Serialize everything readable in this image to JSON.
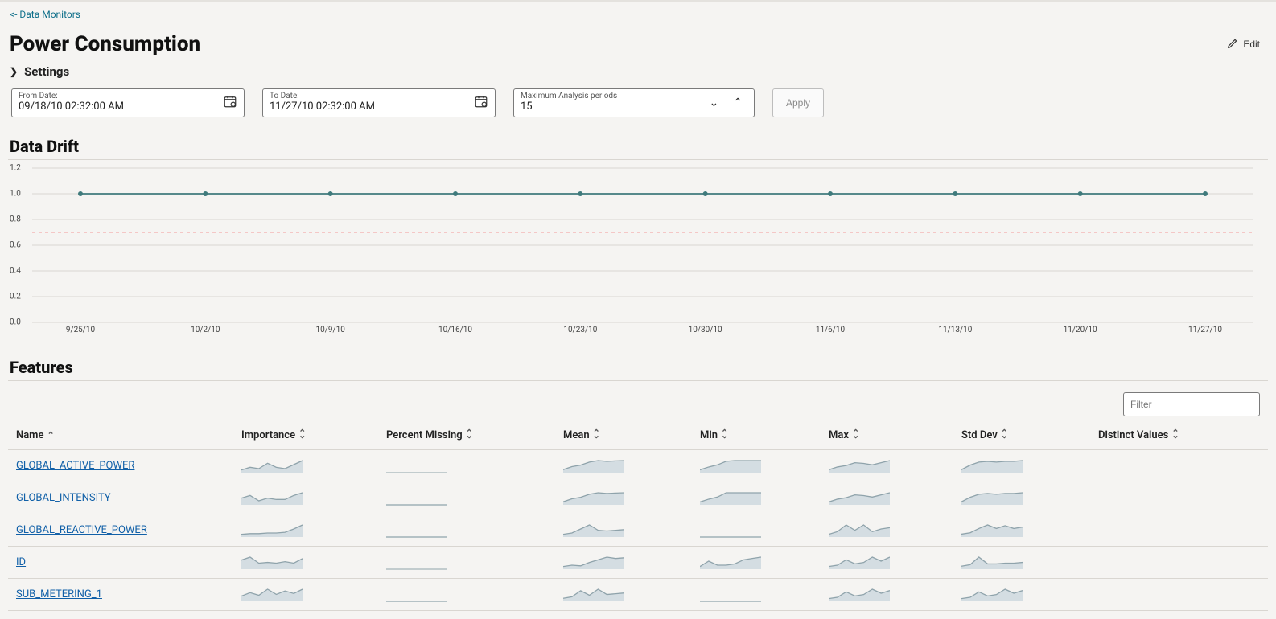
{
  "nav": {
    "back_link_text": "<- Data Monitors"
  },
  "header": {
    "page_title": "Power Consumption",
    "edit_label": "Edit",
    "settings_label": "Settings"
  },
  "controls": {
    "from_date": {
      "label": "From Date:",
      "value": "09/18/10 02:32:00 AM"
    },
    "to_date": {
      "label": "To Date:",
      "value": "11/27/10 02:32:00 AM"
    },
    "max_periods": {
      "label": "Maximum Analysis periods",
      "value": "15"
    },
    "apply_label": "Apply"
  },
  "drift": {
    "section_title": "Data Drift",
    "chart": {
      "type": "line",
      "ylim": [
        0.0,
        1.2
      ],
      "ytick_step": 0.2,
      "y_ticks": [
        "0.0",
        "0.2",
        "0.4",
        "0.6",
        "0.8",
        "1.0",
        "1.2"
      ],
      "threshold_y": 0.7,
      "threshold_color": "#f4b8b8",
      "grid_color": "#d9d6d1",
      "line_color": "#3f7a7c",
      "marker_color": "#3f7a7c",
      "marker_radius": 3,
      "background_color": "#f5f4f2",
      "x_labels": [
        "9/25/10",
        "10/2/10",
        "10/9/10",
        "10/16/10",
        "10/23/10",
        "10/30/10",
        "11/6/10",
        "11/13/10",
        "11/20/10",
        "11/27/10"
      ],
      "y_values": [
        1.0,
        1.0,
        1.0,
        1.0,
        1.0,
        1.0,
        1.0,
        1.0,
        1.0,
        1.0
      ]
    }
  },
  "features": {
    "section_title": "Features",
    "filter_placeholder": "Filter",
    "spark_stroke": "#8fa3ab",
    "spark_fill": "#d4dde2",
    "columns": [
      {
        "key": "name",
        "label": "Name",
        "sort": "asc"
      },
      {
        "key": "importance",
        "label": "Importance",
        "sort": "both"
      },
      {
        "key": "percent_missing",
        "label": "Percent Missing",
        "sort": "both"
      },
      {
        "key": "mean",
        "label": "Mean",
        "sort": "both"
      },
      {
        "key": "min",
        "label": "Min",
        "sort": "both"
      },
      {
        "key": "max",
        "label": "Max",
        "sort": "both"
      },
      {
        "key": "std_dev",
        "label": "Std Dev",
        "sort": "both"
      },
      {
        "key": "distinct_values",
        "label": "Distinct Values",
        "sort": "both"
      }
    ],
    "rows": [
      {
        "name": "GLOBAL_ACTIVE_POWER",
        "importance": [
          0.2,
          0.4,
          0.3,
          0.7,
          0.4,
          0.3,
          0.6,
          0.9
        ],
        "percent_missing": null,
        "mean": [
          0.2,
          0.4,
          0.5,
          0.7,
          0.8,
          0.75,
          0.78,
          0.8
        ],
        "min": [
          0.2,
          0.4,
          0.55,
          0.8,
          0.85,
          0.85,
          0.85,
          0.85
        ],
        "max": [
          0.2,
          0.4,
          0.5,
          0.7,
          0.65,
          0.55,
          0.7,
          0.85
        ],
        "std_dev": [
          0.2,
          0.5,
          0.7,
          0.75,
          0.7,
          0.75,
          0.75,
          0.8
        ]
      },
      {
        "name": "GLOBAL_INTENSITY",
        "importance": [
          0.5,
          0.7,
          0.3,
          0.5,
          0.4,
          0.4,
          0.7,
          0.9
        ],
        "percent_missing": [
          0.0,
          0.0,
          0.0,
          0.0,
          0.0,
          0.0,
          0.0,
          0.0
        ],
        "mean": [
          0.2,
          0.4,
          0.5,
          0.7,
          0.8,
          0.75,
          0.78,
          0.8
        ],
        "min": [
          0.2,
          0.4,
          0.55,
          0.85,
          0.85,
          0.85,
          0.85,
          0.85
        ],
        "max": [
          0.2,
          0.4,
          0.5,
          0.7,
          0.65,
          0.55,
          0.7,
          0.85
        ],
        "std_dev": [
          0.2,
          0.5,
          0.7,
          0.75,
          0.7,
          0.75,
          0.75,
          0.8
        ]
      },
      {
        "name": "GLOBAL_REACTIVE_POWER",
        "importance": [
          0.2,
          0.25,
          0.25,
          0.3,
          0.3,
          0.35,
          0.6,
          0.9
        ],
        "percent_missing": [
          0.0,
          0.0,
          0.0,
          0.0,
          0.0,
          0.0,
          0.0,
          0.0
        ],
        "mean": [
          0.2,
          0.3,
          0.6,
          0.9,
          0.5,
          0.45,
          0.5,
          0.55
        ],
        "min": [
          0.0,
          0.0,
          0.0,
          0.0,
          0.0,
          0.0,
          0.0,
          0.0
        ],
        "max": [
          0.2,
          0.4,
          0.9,
          0.5,
          0.9,
          0.4,
          0.6,
          0.7
        ],
        "std_dev": [
          0.2,
          0.3,
          0.6,
          0.85,
          0.6,
          0.8,
          0.6,
          0.7
        ]
      },
      {
        "name": "ID",
        "importance": [
          0.6,
          0.8,
          0.4,
          0.45,
          0.4,
          0.5,
          0.4,
          0.7
        ],
        "percent_missing": null,
        "mean": [
          0.2,
          0.3,
          0.25,
          0.5,
          0.7,
          0.9,
          0.8,
          0.85
        ],
        "min": [
          0.2,
          0.6,
          0.3,
          0.3,
          0.4,
          0.7,
          0.8,
          0.9
        ],
        "max": [
          0.2,
          0.3,
          0.7,
          0.4,
          0.5,
          0.9,
          0.6,
          0.9
        ],
        "std_dev": [
          0.2,
          0.3,
          0.8,
          0.35,
          0.35,
          0.4,
          0.4,
          0.45
        ]
      },
      {
        "name": "SUB_METERING_1",
        "importance": [
          0.3,
          0.5,
          0.35,
          0.7,
          0.4,
          0.6,
          0.45,
          0.7
        ],
        "percent_missing": [
          0.0,
          0.0,
          0.0,
          0.0,
          0.0,
          0.0,
          0.0,
          0.0
        ],
        "mean": [
          0.2,
          0.3,
          0.7,
          0.4,
          0.8,
          0.45,
          0.5,
          0.55
        ],
        "min": [
          0.0,
          0.0,
          0.0,
          0.0,
          0.0,
          0.0,
          0.0,
          0.0
        ],
        "max": [
          0.2,
          0.3,
          0.7,
          0.4,
          0.5,
          0.9,
          0.6,
          0.8
        ],
        "std_dev": [
          0.2,
          0.3,
          0.7,
          0.4,
          0.5,
          0.9,
          0.6,
          0.8
        ]
      }
    ]
  }
}
